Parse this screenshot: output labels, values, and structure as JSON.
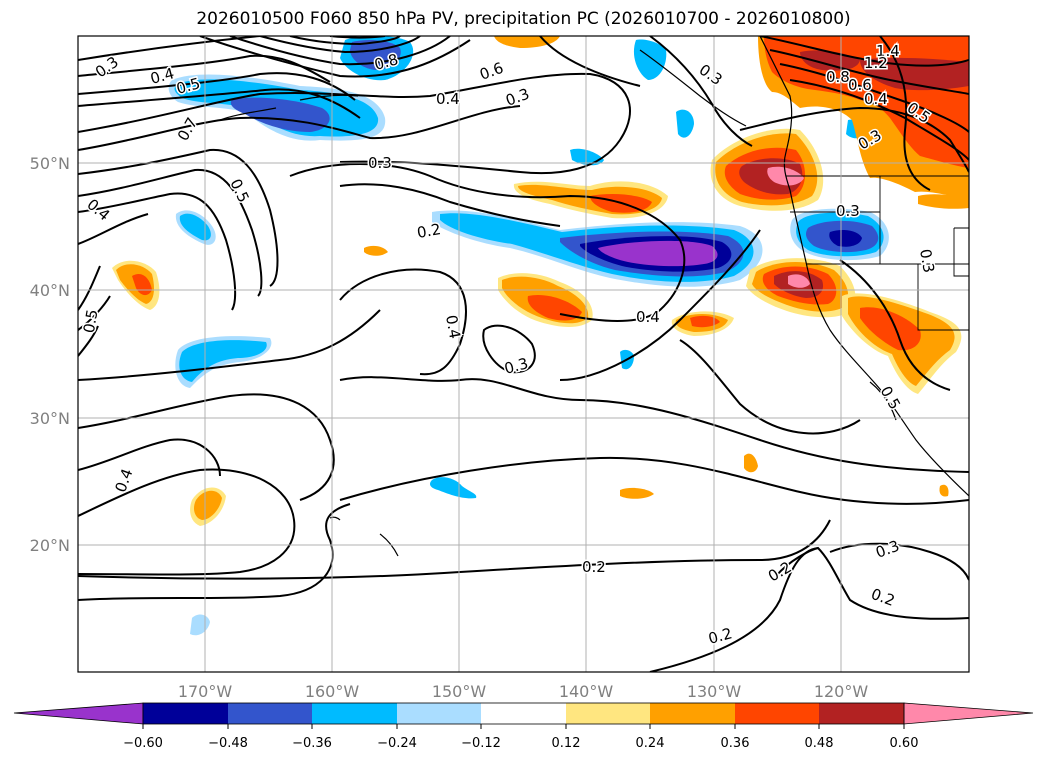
{
  "title": "2026010500 F060 850 hPa PV, precipitation PC (2026010700 - 2026010800)",
  "lat_labels": [
    "50°N",
    "40°N",
    "30°N",
    "20°N"
  ],
  "lon_labels": [
    "170°W",
    "160°W",
    "150°W",
    "140°W",
    "130°W",
    "120°W"
  ],
  "colorbar": {
    "ticks": [
      "−0.60",
      "−0.48",
      "−0.36",
      "−0.24",
      "−0.12",
      "0.12",
      "0.24",
      "0.36",
      "0.48",
      "0.60"
    ],
    "colors": [
      "#9933cc",
      "#000099",
      "#3355cc",
      "#00bbff",
      "#aaddff",
      "#ffffff",
      "#ffe680",
      "#ffa000",
      "#ff4500",
      "#b22222",
      "#ff88aa"
    ]
  },
  "contour_labels": [
    "0.3",
    "0.4",
    "0.5",
    "0.5",
    "0.6",
    "0.3",
    "0.4",
    "0.3",
    "0.2",
    "0.4",
    "0.3",
    "0.4",
    "0.3",
    "0.5",
    "0.4",
    "0.4",
    "0.2",
    "0.2",
    "0.3",
    "0.2",
    "0.2",
    "0.3",
    "1.4",
    "1.2",
    "0.8",
    "0.6",
    "0.4",
    "0.5",
    "0.3",
    "0.3",
    "0.5",
    "0.7",
    "0.8"
  ],
  "colors": {
    "contour": "#000000",
    "grid": "#b0b0b0",
    "coast": "#000000"
  }
}
